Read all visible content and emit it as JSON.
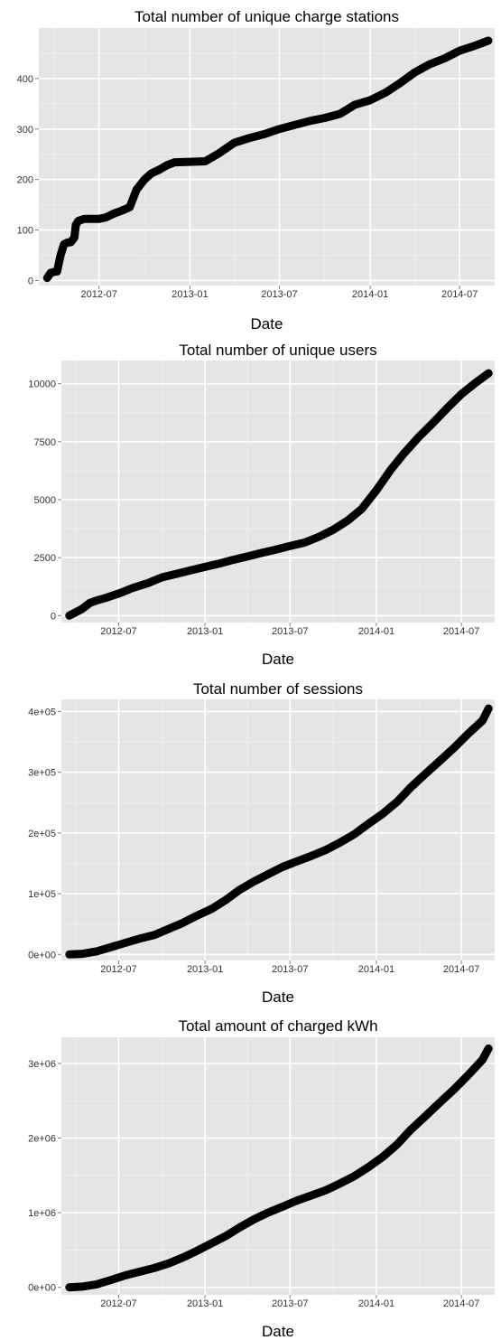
{
  "colors": {
    "panel": "#e5e5e5",
    "grid_major": "#ffffff",
    "grid_minor": "#f0f0f0",
    "marker": "#000000",
    "tick_text": "#333333"
  },
  "chart_data": [
    {
      "type": "scatter",
      "title": "Total number of unique charge stations",
      "xlabel": "Date",
      "ylabel": "",
      "x_ticks": [
        "2012-07",
        "2013-01",
        "2013-07",
        "2014-01",
        "2014-07"
      ],
      "y_ticks": [
        "0",
        "100",
        "200",
        "300",
        "400"
      ],
      "xlim": [
        "2012-03-01",
        "2014-09-10"
      ],
      "ylim": [
        -10,
        500
      ],
      "grid": true,
      "series": [
        {
          "x": [
            "2012-03-18",
            "2012-03-25",
            "2012-04-01",
            "2012-04-07",
            "2012-04-14",
            "2012-04-21",
            "2012-04-28",
            "2012-05-05",
            "2012-05-12",
            "2012-05-15",
            "2012-05-20",
            "2012-06-01",
            "2012-06-15",
            "2012-07-01",
            "2012-07-15",
            "2012-08-01",
            "2012-08-15",
            "2012-09-01",
            "2012-09-15",
            "2012-10-01",
            "2012-10-15",
            "2012-11-01",
            "2012-11-15",
            "2012-12-01",
            "2013-01-01",
            "2013-02-01",
            "2013-03-01",
            "2013-04-01",
            "2013-05-01",
            "2013-06-01",
            "2013-07-01",
            "2013-08-01",
            "2013-09-01",
            "2013-10-01",
            "2013-11-01",
            "2013-12-01",
            "2014-01-01",
            "2014-02-01",
            "2014-03-01",
            "2014-04-01",
            "2014-05-01",
            "2014-06-01",
            "2014-07-01",
            "2014-08-01",
            "2014-08-28"
          ],
          "y": [
            5,
            15,
            17,
            18,
            50,
            72,
            75,
            76,
            85,
            110,
            118,
            122,
            122,
            122,
            125,
            133,
            138,
            145,
            180,
            200,
            212,
            220,
            228,
            234,
            235,
            236,
            252,
            273,
            282,
            290,
            300,
            308,
            316,
            322,
            330,
            348,
            357,
            372,
            390,
            412,
            428,
            440,
            455,
            465,
            475
          ]
        }
      ]
    },
    {
      "type": "scatter",
      "title": "Total number of unique users",
      "xlabel": "Date",
      "ylabel": "",
      "x_ticks": [
        "2012-07",
        "2013-01",
        "2013-07",
        "2014-01",
        "2014-07"
      ],
      "y_ticks": [
        "0",
        "2500",
        "5000",
        "7500",
        "10000"
      ],
      "xlim": [
        "2012-03-01",
        "2014-09-10"
      ],
      "ylim": [
        -300,
        11000
      ],
      "grid": true,
      "series": [
        {
          "x": [
            "2012-03-18",
            "2012-04-01",
            "2012-04-15",
            "2012-05-01",
            "2012-05-15",
            "2012-06-01",
            "2012-07-01",
            "2012-08-01",
            "2012-09-01",
            "2012-10-01",
            "2012-11-01",
            "2012-12-01",
            "2013-01-01",
            "2013-02-01",
            "2013-03-01",
            "2013-04-01",
            "2013-05-01",
            "2013-06-01",
            "2013-07-01",
            "2013-08-01",
            "2013-09-01",
            "2013-10-01",
            "2013-11-01",
            "2013-12-01",
            "2014-01-01",
            "2014-02-01",
            "2014-03-01",
            "2014-04-01",
            "2014-05-01",
            "2014-06-01",
            "2014-07-01",
            "2014-08-01",
            "2014-08-28"
          ],
          "y": [
            0,
            150,
            300,
            550,
            650,
            750,
            950,
            1200,
            1400,
            1650,
            1800,
            1950,
            2100,
            2250,
            2400,
            2550,
            2700,
            2850,
            3000,
            3150,
            3400,
            3700,
            4100,
            4600,
            5400,
            6300,
            7000,
            7700,
            8300,
            8950,
            9550,
            10050,
            10450
          ]
        }
      ]
    },
    {
      "type": "scatter",
      "title": "Total number of sessions",
      "xlabel": "Date",
      "ylabel": "",
      "x_ticks": [
        "2012-07",
        "2013-01",
        "2013-07",
        "2014-01",
        "2014-07"
      ],
      "y_ticks": [
        "0e+00",
        "1e+05",
        "2e+05",
        "3e+05",
        "4e+05"
      ],
      "xlim": [
        "2012-03-01",
        "2014-09-10"
      ],
      "ylim": [
        -10000,
        420000
      ],
      "grid": true,
      "series": [
        {
          "x": [
            "2012-03-18",
            "2012-04-15",
            "2012-05-15",
            "2012-06-15",
            "2012-07-15",
            "2012-08-15",
            "2012-09-15",
            "2012-10-15",
            "2012-11-15",
            "2012-12-15",
            "2013-01-15",
            "2013-02-15",
            "2013-03-15",
            "2013-04-15",
            "2013-05-15",
            "2013-06-15",
            "2013-07-15",
            "2013-08-15",
            "2013-09-15",
            "2013-10-15",
            "2013-11-15",
            "2013-12-15",
            "2014-01-15",
            "2014-02-15",
            "2014-03-15",
            "2014-04-15",
            "2014-05-15",
            "2014-06-15",
            "2014-07-15",
            "2014-08-15",
            "2014-08-28"
          ],
          "y": [
            0,
            1000,
            5000,
            12000,
            19000,
            26000,
            32000,
            42000,
            52000,
            64000,
            75000,
            90000,
            106000,
            120000,
            132000,
            144000,
            153000,
            162000,
            172000,
            184000,
            198000,
            215000,
            232000,
            252000,
            275000,
            297000,
            318000,
            340000,
            363000,
            385000,
            405000
          ]
        }
      ]
    },
    {
      "type": "scatter",
      "title": "Total amount of charged kWh",
      "xlabel": "Date",
      "ylabel": "",
      "x_ticks": [
        "2012-07",
        "2013-01",
        "2013-07",
        "2014-01",
        "2014-07"
      ],
      "y_ticks": [
        "0e+00",
        "1e+06",
        "2e+06",
        "3e+06"
      ],
      "xlim": [
        "2012-03-01",
        "2014-09-10"
      ],
      "ylim": [
        -100000,
        3350000
      ],
      "grid": true,
      "series": [
        {
          "x": [
            "2012-03-18",
            "2012-04-15",
            "2012-05-15",
            "2012-06-15",
            "2012-07-15",
            "2012-08-15",
            "2012-09-15",
            "2012-10-15",
            "2012-11-15",
            "2012-12-15",
            "2013-01-15",
            "2013-02-15",
            "2013-03-15",
            "2013-04-15",
            "2013-05-15",
            "2013-06-15",
            "2013-07-15",
            "2013-08-15",
            "2013-09-15",
            "2013-10-15",
            "2013-11-15",
            "2013-12-15",
            "2014-01-15",
            "2014-02-15",
            "2014-03-15",
            "2014-04-15",
            "2014-05-15",
            "2014-06-15",
            "2014-07-15",
            "2014-08-15",
            "2014-08-28"
          ],
          "y": [
            0,
            10000,
            40000,
            100000,
            160000,
            210000,
            260000,
            320000,
            400000,
            490000,
            590000,
            690000,
            800000,
            910000,
            1000000,
            1080000,
            1160000,
            1230000,
            1300000,
            1390000,
            1490000,
            1610000,
            1750000,
            1920000,
            2110000,
            2290000,
            2470000,
            2650000,
            2840000,
            3050000,
            3200000
          ]
        }
      ]
    }
  ]
}
